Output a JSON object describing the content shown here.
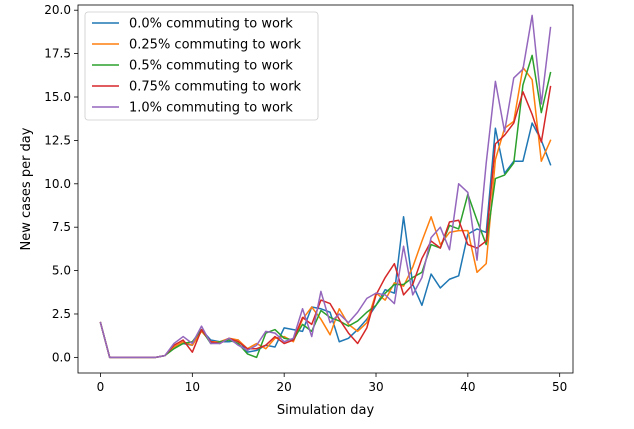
{
  "chart_data": {
    "type": "line",
    "title": "",
    "xlabel": "Simulation day",
    "ylabel": "New cases per day",
    "xlim": [
      -2.45,
      51.45
    ],
    "ylim": [
      -0.9,
      20.3
    ],
    "x_ticks": [
      0,
      10,
      20,
      30,
      40,
      50
    ],
    "x_tick_labels": [
      "0",
      "10",
      "20",
      "30",
      "40",
      "50"
    ],
    "y_ticks": [
      0,
      2.5,
      5,
      7.5,
      10,
      12.5,
      15,
      17.5,
      20
    ],
    "y_tick_labels": [
      "0.0",
      "2.5",
      "5.0",
      "7.5",
      "10.0",
      "12.5",
      "15.0",
      "17.5",
      "20.0"
    ],
    "grid": false,
    "legend_position": "top-left",
    "x": [
      0,
      1,
      2,
      3,
      4,
      5,
      6,
      7,
      8,
      9,
      10,
      11,
      12,
      13,
      14,
      15,
      16,
      17,
      18,
      19,
      20,
      21,
      22,
      23,
      24,
      25,
      26,
      27,
      28,
      29,
      30,
      31,
      32,
      33,
      34,
      35,
      36,
      37,
      38,
      39,
      40,
      41,
      42,
      43,
      44,
      45,
      46,
      47,
      48,
      49
    ],
    "series": [
      {
        "name": "0.0% commuting to work",
        "color": "#1f77b4",
        "values": [
          2.0,
          0.0,
          0.0,
          0.0,
          0.0,
          0.0,
          0.0,
          0.1,
          0.6,
          0.8,
          0.7,
          1.6,
          1.0,
          0.9,
          0.9,
          1.0,
          0.3,
          0.4,
          0.7,
          0.6,
          1.7,
          1.6,
          1.5,
          2.9,
          2.8,
          2.6,
          0.9,
          1.1,
          1.6,
          2.2,
          3.0,
          3.9,
          3.7,
          8.1,
          4.2,
          3.0,
          4.8,
          4.0,
          4.5,
          4.7,
          7.1,
          7.4,
          7.2,
          13.2,
          10.6,
          11.3,
          11.3,
          13.5,
          12.5,
          11.1
        ]
      },
      {
        "name": "0.25% commuting to work",
        "color": "#ff7f0e",
        "values": [
          2.0,
          0.0,
          0.0,
          0.0,
          0.0,
          0.0,
          0.0,
          0.1,
          0.6,
          0.9,
          0.7,
          1.5,
          0.9,
          0.9,
          1.1,
          1.0,
          0.5,
          0.8,
          0.5,
          1.1,
          1.2,
          0.9,
          2.2,
          2.9,
          2.2,
          1.3,
          2.8,
          1.9,
          1.5,
          2.0,
          3.7,
          3.3,
          4.3,
          4.1,
          5.2,
          6.7,
          8.1,
          6.5,
          7.2,
          7.3,
          7.3,
          4.9,
          5.4,
          11.4,
          13.2,
          13.6,
          16.7,
          16.0,
          11.3,
          12.5
        ]
      },
      {
        "name": "0.5% commuting to work",
        "color": "#2ca02c",
        "values": [
          2.0,
          0.0,
          0.0,
          0.0,
          0.0,
          0.0,
          0.0,
          0.1,
          0.5,
          0.8,
          0.9,
          1.6,
          0.8,
          0.9,
          1.0,
          0.8,
          0.2,
          0.0,
          1.4,
          1.6,
          1.1,
          1.0,
          1.9,
          1.5,
          2.7,
          2.3,
          2.1,
          1.8,
          2.1,
          2.6,
          3.0,
          3.7,
          4.2,
          4.2,
          4.6,
          4.9,
          6.5,
          6.3,
          7.6,
          7.4,
          9.4,
          7.9,
          6.5,
          10.3,
          10.5,
          11.2,
          15.7,
          17.4,
          14.1,
          16.4
        ]
      },
      {
        "name": "0.75% commuting to work",
        "color": "#d62728",
        "values": [
          2.0,
          0.0,
          0.0,
          0.0,
          0.0,
          0.0,
          0.0,
          0.1,
          0.7,
          1.0,
          0.3,
          1.6,
          0.9,
          0.8,
          1.1,
          0.9,
          0.5,
          0.5,
          0.7,
          1.2,
          0.8,
          1.0,
          2.3,
          1.9,
          3.3,
          3.1,
          2.2,
          1.4,
          0.8,
          1.7,
          3.6,
          4.6,
          5.4,
          3.6,
          4.2,
          5.7,
          6.7,
          6.3,
          7.8,
          7.9,
          6.5,
          6.3,
          6.7,
          12.3,
          12.8,
          13.5,
          15.3,
          14.0,
          12.4,
          15.6
        ]
      },
      {
        "name": "1.0% commuting to work",
        "color": "#9467bd",
        "values": [
          2.0,
          0.0,
          0.0,
          0.0,
          0.0,
          0.0,
          0.0,
          0.1,
          0.8,
          1.2,
          0.8,
          1.8,
          0.8,
          0.8,
          1.1,
          0.7,
          0.4,
          0.7,
          1.5,
          1.4,
          0.9,
          1.1,
          2.8,
          1.2,
          3.8,
          2.0,
          2.5,
          2.0,
          2.6,
          3.4,
          3.7,
          3.6,
          3.1,
          6.4,
          3.6,
          4.6,
          6.9,
          7.5,
          6.2,
          10.0,
          9.5,
          5.6,
          11.2,
          15.9,
          13.0,
          16.1,
          16.6,
          19.7,
          14.6,
          19.0
        ]
      }
    ]
  }
}
